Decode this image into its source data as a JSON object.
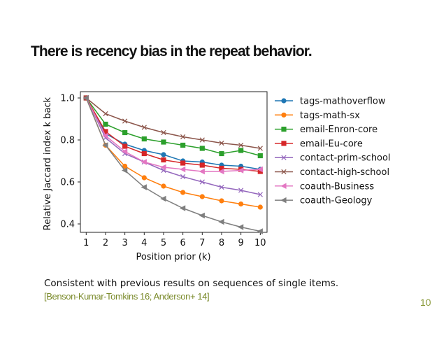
{
  "slide": {
    "title": "There is recency bias in the repeat behavior.",
    "body_text": "Consistent with previous results on sequences of single items.",
    "citation": "[Benson-Kumar-Tomkins 16; Anderson+ 14]",
    "page_number": "10",
    "citation_color": "#7a8a2a"
  },
  "chart_data": {
    "type": "line",
    "title": "",
    "xlabel": "Position prior (k)",
    "ylabel": "Relative Jaccard index k back",
    "x": [
      1,
      2,
      3,
      4,
      5,
      6,
      7,
      8,
      9,
      10
    ],
    "xticks": [
      "1",
      "2",
      "3",
      "4",
      "5",
      "6",
      "7",
      "8",
      "9",
      "10"
    ],
    "yticks": [
      "0.4",
      "0.6",
      "0.8",
      "1.0"
    ],
    "xlim": [
      0.7,
      10.35
    ],
    "ylim": [
      0.36,
      1.03
    ],
    "grid": false,
    "legend_position": "right",
    "series": [
      {
        "name": "tags-mathoverflow",
        "color": "#1f77b4",
        "marker": "circle",
        "values": [
          1.0,
          0.83,
          0.78,
          0.75,
          0.73,
          0.7,
          0.695,
          0.68,
          0.675,
          0.66
        ]
      },
      {
        "name": "tags-math-sx",
        "color": "#ff7f0e",
        "marker": "circle",
        "values": [
          1.0,
          0.775,
          0.675,
          0.62,
          0.58,
          0.55,
          0.53,
          0.51,
          0.495,
          0.48
        ]
      },
      {
        "name": "email-Enron-core",
        "color": "#2ca02c",
        "marker": "square",
        "values": [
          1.0,
          0.875,
          0.835,
          0.805,
          0.79,
          0.775,
          0.76,
          0.735,
          0.75,
          0.725
        ]
      },
      {
        "name": "email-Eu-core",
        "color": "#d62728",
        "marker": "square",
        "values": [
          1.0,
          0.84,
          0.77,
          0.735,
          0.705,
          0.69,
          0.68,
          0.665,
          0.66,
          0.65
        ]
      },
      {
        "name": "contact-prim-school",
        "color": "#9467bd",
        "marker": "x",
        "values": [
          1.0,
          0.81,
          0.735,
          0.695,
          0.655,
          0.625,
          0.6,
          0.575,
          0.56,
          0.54
        ]
      },
      {
        "name": "contact-high-school",
        "color": "#8c564b",
        "marker": "x",
        "values": [
          1.0,
          0.925,
          0.89,
          0.86,
          0.835,
          0.815,
          0.8,
          0.785,
          0.775,
          0.76
        ]
      },
      {
        "name": "coauth-Business",
        "color": "#e377c2",
        "marker": "triangle-left",
        "values": [
          1.0,
          0.82,
          0.745,
          0.695,
          0.67,
          0.66,
          0.65,
          0.65,
          0.655,
          0.66
        ]
      },
      {
        "name": "coauth-Geology",
        "color": "#7f7f7f",
        "marker": "triangle-left",
        "values": [
          1.0,
          0.775,
          0.655,
          0.575,
          0.52,
          0.475,
          0.44,
          0.41,
          0.385,
          0.365
        ]
      }
    ]
  }
}
